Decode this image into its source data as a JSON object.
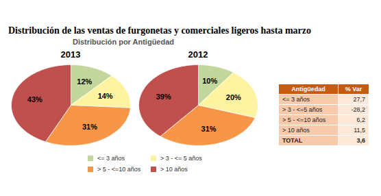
{
  "title": "Distribución de las ventas de furgonetas y comerciales ligeros hasta marzo",
  "subtitle": "Distribución por Antigüedad",
  "chart_data": [
    {
      "type": "pie",
      "title": "2013",
      "categories": [
        "<= 3 años",
        "> 3 - <= 5 años",
        "> 5 - <=10 años",
        "> 10 años"
      ],
      "values": [
        12,
        14,
        31,
        43
      ],
      "value_labels": [
        "12%",
        "14%",
        "31%",
        "43%"
      ],
      "colors": [
        "#c3d69b",
        "#fdf3a0",
        "#f79646",
        "#c0504d"
      ],
      "data_labels": true,
      "legend": "bottom"
    },
    {
      "type": "pie",
      "title": "2012",
      "categories": [
        "<= 3 años",
        "> 3 - <= 5 años",
        "> 5 - <=10 años",
        "> 10 años"
      ],
      "values": [
        10,
        20,
        31,
        39
      ],
      "value_labels": [
        "10%",
        "20%",
        "31%",
        "39%"
      ],
      "colors": [
        "#c3d69b",
        "#fdf3a0",
        "#f79646",
        "#c0504d"
      ],
      "data_labels": true,
      "legend": "bottom"
    }
  ],
  "table": {
    "header": [
      "Antigüedad",
      "% Var"
    ],
    "rows": [
      [
        "<= 3 años",
        "27,7"
      ],
      [
        "> 3 - <=5 años",
        "-28,2"
      ],
      [
        "> 5 - <=10 años",
        "6,2"
      ],
      [
        "> 10 años",
        "11,5"
      ],
      [
        "TOTAL",
        "3,6"
      ]
    ]
  }
}
